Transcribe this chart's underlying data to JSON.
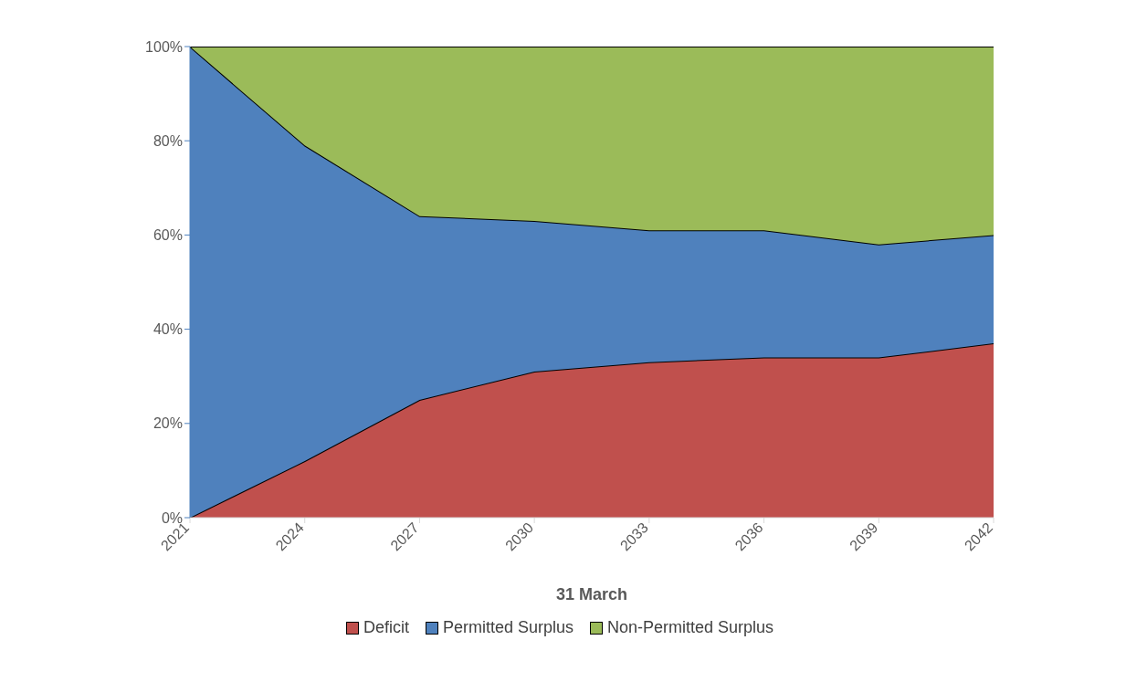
{
  "chart_data": {
    "type": "area",
    "stacked": true,
    "xlabel": "31 March",
    "x": [
      2021,
      2024,
      2027,
      2030,
      2033,
      2036,
      2039,
      2042
    ],
    "xlim": [
      2021,
      2042
    ],
    "xticks": [
      2021,
      2024,
      2027,
      2030,
      2033,
      2036,
      2039,
      2042
    ],
    "ylim": [
      0,
      100
    ],
    "yticks": [
      {
        "value": 0,
        "label": "0%"
      },
      {
        "value": 20,
        "label": "20%"
      },
      {
        "value": 40,
        "label": "40%"
      },
      {
        "value": 60,
        "label": "60%"
      },
      {
        "value": 80,
        "label": "80%"
      },
      {
        "value": 100,
        "label": "100%"
      }
    ],
    "series": [
      {
        "name": "Deficit",
        "color": "#c0504d",
        "values": [
          0,
          12,
          25,
          31,
          33,
          34,
          34,
          37
        ]
      },
      {
        "name": "Permitted Surplus",
        "color": "#4f81bd",
        "values": [
          100,
          67,
          39,
          32,
          28,
          27,
          24,
          23
        ]
      },
      {
        "name": "Non-Permitted Surplus",
        "color": "#9bbb59",
        "values": [
          0,
          21,
          36,
          37,
          39,
          39,
          42,
          40
        ]
      }
    ],
    "grid": false,
    "legend": "bottom"
  }
}
